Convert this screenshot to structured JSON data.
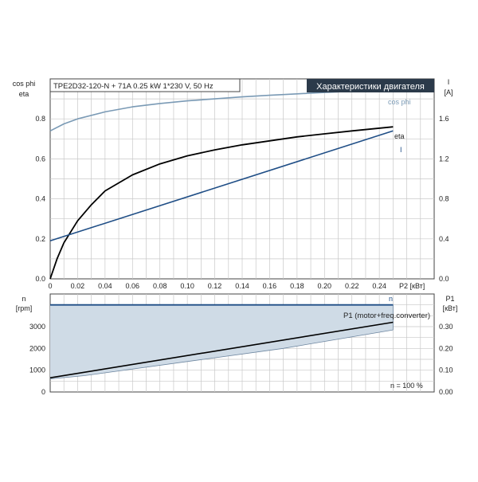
{
  "chart_data": [
    {
      "type": "line",
      "title": "TPE2D32-120-N + 71A   0.25 kW   1*230 V, 50 Hz",
      "badge": "Характеристики двигателя",
      "xlabel": "P2 [кВт]",
      "ylabel_left_1": "cos phi",
      "ylabel_left_2": "eta",
      "ylabel_right_1": "I",
      "ylabel_right_2": "[A]",
      "xlim": [
        0,
        0.28
      ],
      "ylim_left": [
        0,
        1.0
      ],
      "ylim_right": [
        0,
        2.0
      ],
      "grid": true,
      "colors": {
        "cos_phi": "#7a9ab5",
        "eta": "#000000",
        "current": "#1f4e86"
      },
      "x_ticks": [
        "0",
        "0.02",
        "0.04",
        "0.06",
        "0.08",
        "0.10",
        "0.12",
        "0.14",
        "0.16",
        "0.18",
        "0.20",
        "0.22",
        "0.24"
      ],
      "y_ticks_left": [
        "0.0",
        "0.2",
        "0.4",
        "0.6",
        "0.8"
      ],
      "y_ticks_right": [
        "0.0",
        "0.4",
        "0.8",
        "1.2",
        "1.6"
      ],
      "series": [
        {
          "name": "cos phi",
          "axis": "left",
          "x": [
            0,
            0.01,
            0.02,
            0.04,
            0.06,
            0.08,
            0.1,
            0.12,
            0.14,
            0.16,
            0.18,
            0.2,
            0.22,
            0.25
          ],
          "y": [
            0.74,
            0.775,
            0.8,
            0.835,
            0.86,
            0.877,
            0.89,
            0.9,
            0.91,
            0.918,
            0.925,
            0.932,
            0.938,
            0.945
          ]
        },
        {
          "name": "eta",
          "axis": "left",
          "x": [
            0,
            0.005,
            0.01,
            0.02,
            0.03,
            0.04,
            0.06,
            0.08,
            0.1,
            0.12,
            0.14,
            0.16,
            0.18,
            0.2,
            0.22,
            0.25
          ],
          "y": [
            0.0,
            0.1,
            0.18,
            0.29,
            0.37,
            0.44,
            0.52,
            0.575,
            0.615,
            0.645,
            0.67,
            0.69,
            0.71,
            0.725,
            0.74,
            0.76
          ]
        },
        {
          "name": "I",
          "axis": "right",
          "x": [
            0,
            0.25
          ],
          "y": [
            0.38,
            1.48
          ]
        }
      ]
    },
    {
      "type": "area",
      "xlim": [
        0,
        0.28
      ],
      "ylabel_left_1": "n",
      "ylabel_left_2": "[rpm]",
      "ylabel_right_1": "P1",
      "ylabel_right_2": "[кВт]",
      "ylim_left": [
        0,
        4500
      ],
      "ylim_right": [
        0,
        0.45
      ],
      "grid": true,
      "colors": {
        "n": "#1f4e86",
        "p1_line": "#000000",
        "p1_fill": "#cfdbe6"
      },
      "y_ticks_left": [
        "0",
        "1000",
        "2000",
        "3000"
      ],
      "y_ticks_right": [
        "0.00",
        "0.10",
        "0.20",
        "0.30"
      ],
      "annotation_p1": "P1 (motor+freq.converter)",
      "annotation_n": "n",
      "annotation_note": "n = 100 %",
      "series": [
        {
          "name": "n",
          "axis": "left",
          "x": [
            0,
            0.25
          ],
          "y": [
            4000,
            4000
          ]
        },
        {
          "name": "P1 (motor+freq.converter)",
          "axis": "right",
          "x": [
            0,
            0.25
          ],
          "y": [
            0.065,
            0.32
          ]
        },
        {
          "name": "P1 band upper",
          "axis": "right",
          "x": [
            0,
            0.25
          ],
          "y": [
            0.4,
            0.4
          ]
        },
        {
          "name": "P1 band lower",
          "axis": "right",
          "x": [
            0,
            0.025,
            0.17,
            0.25
          ],
          "y": [
            0.06,
            0.075,
            0.2,
            0.285
          ]
        }
      ]
    }
  ]
}
